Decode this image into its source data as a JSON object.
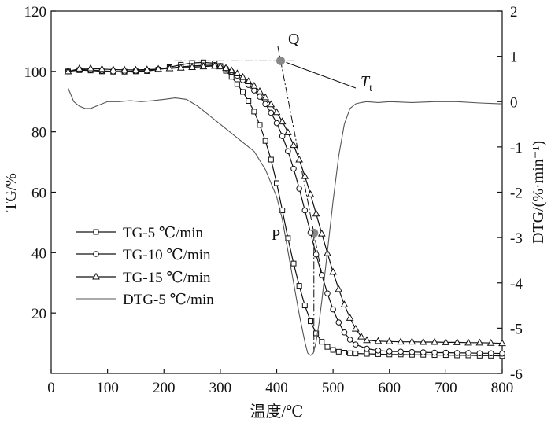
{
  "chart_data": {
    "type": "line",
    "xlabel": "温度/℃",
    "ylabel_left": "TG/%",
    "ylabel_right": "DTG/(%·min⁻¹)",
    "xlim": [
      0,
      800
    ],
    "ylim_left": [
      0,
      120
    ],
    "ylim_right": [
      -6,
      2
    ],
    "x_ticks": [
      0,
      100,
      200,
      300,
      400,
      500,
      600,
      700,
      800
    ],
    "y_ticks_left": [
      20,
      40,
      60,
      80,
      100,
      120
    ],
    "y_ticks_right": [
      2,
      1,
      0,
      -1,
      -2,
      -3,
      -4,
      -5,
      -6
    ],
    "x_tick_labels": [
      "0",
      "100",
      "200",
      "300",
      "400",
      "500",
      "600",
      "700",
      "800"
    ],
    "y_tick_labels_left": [
      "20",
      "40",
      "60",
      "80",
      "100",
      "120"
    ],
    "y_tick_labels_right": [
      "2",
      "1",
      "0",
      "-1",
      "-2",
      "-3",
      "-4",
      "-5",
      "-6"
    ],
    "grid": false,
    "legend_position": "lower-left",
    "series": [
      {
        "name": "TG-5 ℃/min",
        "axis": "left",
        "marker": "square",
        "x": [
          30,
          50,
          70,
          90,
          110,
          130,
          150,
          170,
          190,
          210,
          230,
          250,
          270,
          290,
          300,
          310,
          320,
          330,
          340,
          350,
          360,
          370,
          380,
          390,
          400,
          410,
          420,
          430,
          440,
          450,
          460,
          470,
          480,
          490,
          500,
          510,
          520,
          530,
          540,
          560,
          580,
          600,
          620,
          640,
          660,
          680,
          700,
          720,
          740,
          760,
          780,
          800
        ],
        "values": [
          100.0,
          100.4,
          100.3,
          100.0,
          99.9,
          99.9,
          100.0,
          100.1,
          100.6,
          101.4,
          102.2,
          102.8,
          103.0,
          102.7,
          101.8,
          100.2,
          98.2,
          95.8,
          93.2,
          90.2,
          86.7,
          82.3,
          77.0,
          70.8,
          63.0,
          54.0,
          44.8,
          36.4,
          29.0,
          22.5,
          17.3,
          13.3,
          10.5,
          8.8,
          7.8,
          7.2,
          6.9,
          6.7,
          6.6,
          6.5,
          6.4,
          6.3,
          6.3,
          6.2,
          6.2,
          6.1,
          6.1,
          6.0,
          6.0,
          5.9,
          5.9,
          5.8
        ]
      },
      {
        "name": "TG-10 ℃/min",
        "axis": "left",
        "marker": "circle",
        "x": [
          30,
          50,
          70,
          90,
          110,
          130,
          150,
          170,
          190,
          210,
          230,
          250,
          270,
          290,
          300,
          310,
          320,
          330,
          340,
          350,
          360,
          370,
          380,
          390,
          400,
          410,
          420,
          430,
          440,
          450,
          460,
          470,
          480,
          490,
          500,
          510,
          520,
          530,
          540,
          560,
          580,
          600,
          620,
          640,
          660,
          680,
          700,
          720,
          740,
          760,
          780,
          800
        ],
        "values": [
          100.0,
          100.6,
          100.5,
          100.2,
          100.0,
          100.0,
          100.1,
          100.3,
          100.7,
          101.1,
          101.5,
          101.8,
          102.0,
          102.1,
          101.8,
          101.0,
          99.9,
          98.6,
          97.1,
          95.5,
          93.7,
          91.6,
          89.2,
          86.3,
          82.9,
          78.6,
          73.6,
          67.8,
          61.2,
          54.0,
          46.6,
          39.4,
          32.6,
          26.5,
          21.2,
          16.9,
          13.6,
          11.2,
          9.6,
          8.2,
          7.6,
          7.3,
          7.2,
          7.1,
          7.0,
          6.9,
          6.9,
          6.8,
          6.8,
          6.7,
          6.7,
          6.6
        ]
      },
      {
        "name": "TG-15 ℃/min",
        "axis": "left",
        "marker": "triangle",
        "x": [
          30,
          50,
          70,
          90,
          110,
          130,
          150,
          170,
          190,
          210,
          230,
          250,
          270,
          290,
          300,
          310,
          320,
          330,
          340,
          350,
          360,
          370,
          380,
          390,
          400,
          410,
          420,
          430,
          440,
          450,
          460,
          470,
          480,
          490,
          500,
          510,
          520,
          530,
          540,
          550,
          560,
          580,
          600,
          620,
          640,
          660,
          680,
          700,
          720,
          740,
          760,
          780,
          800
        ],
        "values": [
          100.0,
          100.9,
          101.0,
          100.8,
          100.6,
          100.5,
          100.5,
          100.6,
          100.8,
          101.0,
          101.2,
          101.4,
          101.6,
          101.8,
          101.6,
          101.1,
          100.3,
          99.3,
          98.1,
          96.7,
          95.2,
          93.4,
          91.4,
          89.1,
          86.5,
          83.4,
          79.8,
          75.6,
          70.8,
          65.3,
          59.3,
          52.9,
          46.3,
          39.8,
          33.6,
          27.9,
          22.8,
          18.4,
          14.8,
          12.2,
          11.0,
          10.7,
          10.6,
          10.5,
          10.5,
          10.4,
          10.4,
          10.3,
          10.3,
          10.2,
          10.2,
          10.1,
          10.0
        ]
      },
      {
        "name": "DTG-5 ℃/min",
        "axis": "right",
        "marker": "none",
        "x": [
          30,
          40,
          50,
          60,
          70,
          80,
          90,
          100,
          120,
          140,
          160,
          180,
          200,
          220,
          240,
          260,
          280,
          300,
          320,
          340,
          360,
          380,
          400,
          410,
          420,
          430,
          440,
          450,
          455,
          460,
          465,
          470,
          475,
          480,
          490,
          500,
          510,
          520,
          530,
          540,
          550,
          560,
          580,
          600,
          640,
          680,
          720,
          760,
          800
        ],
        "values": [
          0.3,
          0.0,
          -0.1,
          -0.15,
          -0.15,
          -0.1,
          -0.05,
          0.0,
          0.0,
          0.02,
          0.0,
          0.02,
          0.05,
          0.08,
          0.05,
          -0.1,
          -0.3,
          -0.5,
          -0.7,
          -0.9,
          -1.1,
          -1.5,
          -2.1,
          -2.6,
          -3.3,
          -4.0,
          -4.7,
          -5.3,
          -5.55,
          -5.6,
          -5.55,
          -5.3,
          -4.9,
          -4.4,
          -3.3,
          -2.2,
          -1.2,
          -0.5,
          -0.15,
          -0.05,
          -0.02,
          0.0,
          -0.02,
          0.0,
          -0.02,
          0.0,
          0.0,
          -0.03,
          -0.05
        ]
      }
    ],
    "annotations": {
      "Q": {
        "label": "Q",
        "x": 407,
        "y": 103.5
      },
      "P": {
        "label": "P",
        "x": 466,
        "y": 46.5
      },
      "Tt": {
        "label": "T",
        "subscript": "t"
      }
    }
  }
}
